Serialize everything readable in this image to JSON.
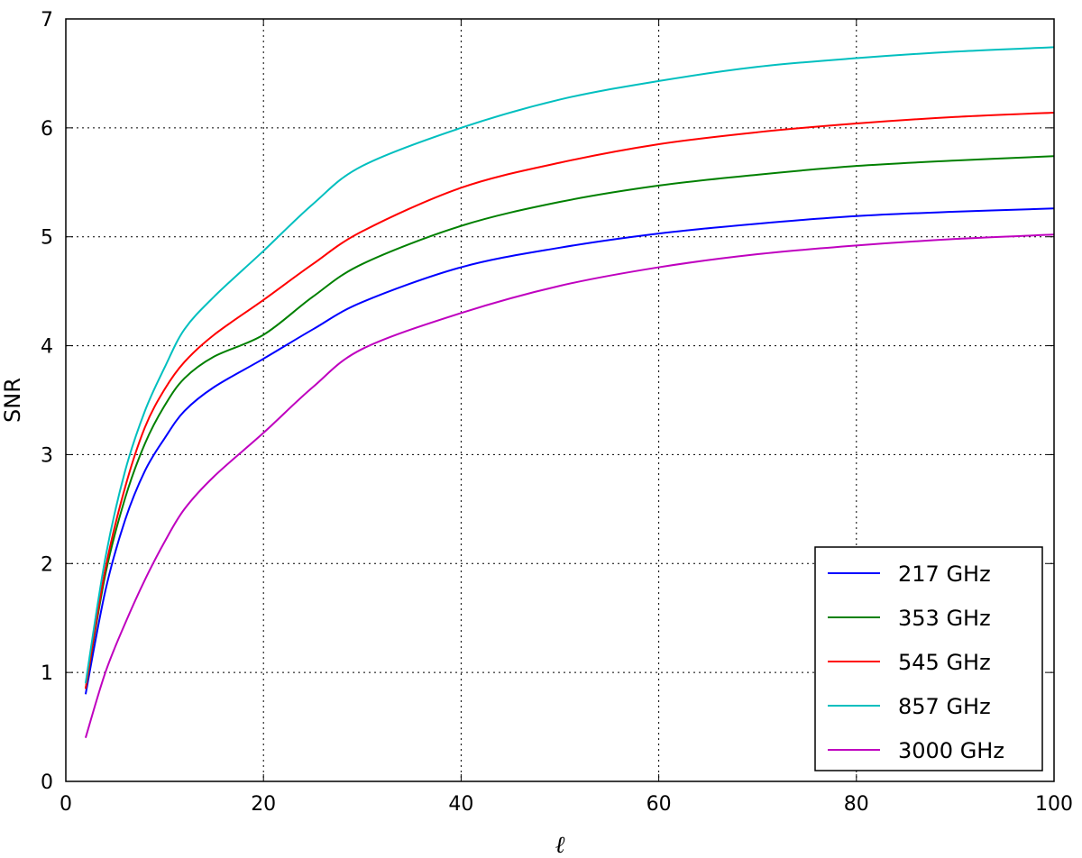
{
  "chart_data": {
    "type": "line",
    "xlabel": "ℓ",
    "ylabel": "SNR",
    "xlim": [
      0,
      100
    ],
    "ylim": [
      0,
      7
    ],
    "xticks": [
      0,
      20,
      40,
      60,
      80,
      100
    ],
    "yticks": [
      0,
      1,
      2,
      3,
      4,
      5,
      6,
      7
    ],
    "grid": true,
    "legend_position": "lower-right",
    "x": [
      2,
      4,
      6,
      8,
      10,
      12,
      15,
      20,
      25,
      30,
      40,
      50,
      60,
      70,
      80,
      90,
      100
    ],
    "series": [
      {
        "name": "217 GHz",
        "color": "#0000ff",
        "values": [
          0.8,
          1.75,
          2.4,
          2.85,
          3.15,
          3.4,
          3.62,
          3.88,
          4.15,
          4.4,
          4.72,
          4.9,
          5.03,
          5.12,
          5.19,
          5.23,
          5.26
        ]
      },
      {
        "name": "353 GHz",
        "color": "#008000",
        "values": [
          0.85,
          1.9,
          2.6,
          3.1,
          3.45,
          3.7,
          3.9,
          4.1,
          4.45,
          4.75,
          5.1,
          5.32,
          5.47,
          5.57,
          5.65,
          5.7,
          5.74
        ]
      },
      {
        "name": "545 GHz",
        "color": "#ff0000",
        "values": [
          0.85,
          1.95,
          2.7,
          3.25,
          3.6,
          3.85,
          4.1,
          4.42,
          4.75,
          5.05,
          5.45,
          5.68,
          5.85,
          5.96,
          6.04,
          6.1,
          6.14
        ]
      },
      {
        "name": "857 GHz",
        "color": "#00bfbf",
        "values": [
          0.9,
          2.05,
          2.85,
          3.4,
          3.8,
          4.15,
          4.45,
          4.87,
          5.3,
          5.65,
          6.0,
          6.26,
          6.43,
          6.56,
          6.64,
          6.7,
          6.74
        ]
      },
      {
        "name": "3000 GHz",
        "color": "#bf00bf",
        "values": [
          0.4,
          1.0,
          1.45,
          1.85,
          2.2,
          2.5,
          2.8,
          3.2,
          3.62,
          3.97,
          4.3,
          4.55,
          4.72,
          4.84,
          4.92,
          4.98,
          5.02
        ]
      }
    ]
  }
}
